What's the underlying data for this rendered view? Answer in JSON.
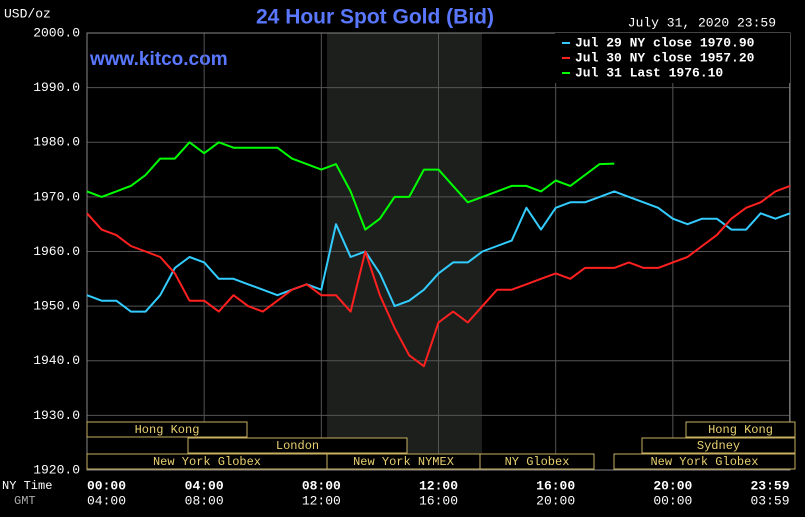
{
  "chart_data": {
    "type": "line",
    "title": "24 Hour Spot Gold (Bid)",
    "unit_label": "USD/oz",
    "timestamp": "July 31, 2020 23:59",
    "watermark": "www.kitco.com",
    "x_axis_label": "NY Time",
    "x2_axis_label": "GMT",
    "x": [
      0,
      0.5,
      1,
      1.5,
      2,
      2.5,
      3,
      3.5,
      4,
      4.5,
      5,
      5.5,
      6,
      6.5,
      7,
      7.5,
      8,
      8.5,
      9,
      9.5,
      10,
      10.5,
      11,
      11.5,
      12,
      12.5,
      13,
      13.5,
      14,
      14.5,
      15,
      15.5,
      16,
      16.5,
      17,
      17.5,
      18,
      18.5,
      19,
      19.5,
      20,
      20.5,
      21,
      21.5,
      22,
      22.5,
      23,
      23.5,
      24
    ],
    "xlim": [
      0,
      24
    ],
    "xticks": [
      {
        "value": 0,
        "label": "00:00"
      },
      {
        "value": 4,
        "label": "04:00"
      },
      {
        "value": 8,
        "label": "08:00"
      },
      {
        "value": 12,
        "label": "12:00"
      },
      {
        "value": 16,
        "label": "16:00"
      },
      {
        "value": 20,
        "label": "20:00"
      },
      {
        "value": 23.983,
        "label": "23:59"
      }
    ],
    "x2ticks": [
      "04:00",
      "08:00",
      "12:00",
      "16:00",
      "20:00",
      "00:00",
      "03:59"
    ],
    "ylim": [
      1920,
      2000
    ],
    "yticks": [
      {
        "value": 1920,
        "label": "1920.0"
      },
      {
        "value": 1930,
        "label": "1930.0"
      },
      {
        "value": 1940,
        "label": "1940.0"
      },
      {
        "value": 1950,
        "label": "1950.0"
      },
      {
        "value": 1960,
        "label": "1960.0"
      },
      {
        "value": 1970,
        "label": "1970.0"
      },
      {
        "value": 1980,
        "label": "1980.0"
      },
      {
        "value": 1990,
        "label": "1990.0"
      },
      {
        "value": 2000,
        "label": "2000.0"
      }
    ],
    "grid": true,
    "series": [
      {
        "name": "Jul 29 NY close 1970.90",
        "color": "#33ccff",
        "values": [
          1952,
          1951,
          1951,
          1949,
          1949,
          1952,
          1957,
          1959,
          1958,
          1955,
          1955,
          1954,
          1953,
          1952,
          1953,
          1954,
          1953,
          1965,
          1959,
          1960,
          1956,
          1950,
          1951,
          1953,
          1956,
          1958,
          1958,
          1960,
          1961,
          1962,
          1968,
          1964,
          1968,
          1969,
          1969,
          1970,
          1971,
          1970,
          1969,
          1968,
          1966,
          1965,
          1966,
          1966,
          1964,
          1964,
          1967,
          1966,
          1967
        ]
      },
      {
        "name": "Jul 30 NY close 1957.20",
        "color": "#ff2020",
        "values": [
          1967,
          1964,
          1963,
          1961,
          1960,
          1959,
          1956,
          1951,
          1951,
          1949,
          1952,
          1950,
          1949,
          1951,
          1953,
          1954,
          1952,
          1952,
          1949,
          1960,
          1952,
          1946,
          1941,
          1939,
          1947,
          1949,
          1947,
          1950,
          1953,
          1953,
          1954,
          1955,
          1956,
          1955,
          1957,
          1957,
          1957,
          1958,
          1957,
          1957,
          1958,
          1959,
          1961,
          1963,
          1966,
          1968,
          1969,
          1971,
          1972
        ]
      },
      {
        "name": "Jul 31 Last 1976.10",
        "color": "#00ff00",
        "values": [
          1971,
          1970,
          1971,
          1972,
          1974,
          1977,
          1977,
          1980,
          1978,
          1980,
          1979,
          1979,
          1979,
          1979,
          1977,
          1976,
          1975,
          1976,
          1971,
          1964,
          1966,
          1970,
          1970,
          1975,
          1975,
          1972,
          1969,
          1970,
          1971,
          1972,
          1972,
          1971,
          1973,
          1972,
          1974,
          1976,
          1976.1,
          null,
          null,
          null,
          null,
          null,
          null,
          null,
          null,
          null,
          null,
          null,
          null
        ]
      }
    ],
    "legend": "upper right",
    "sessions": [
      "Hong Kong",
      "London",
      "New York Globex",
      "New York NYMEX",
      "NY Globex",
      "Hong Kong",
      "Sydney",
      "New York Globex"
    ]
  }
}
